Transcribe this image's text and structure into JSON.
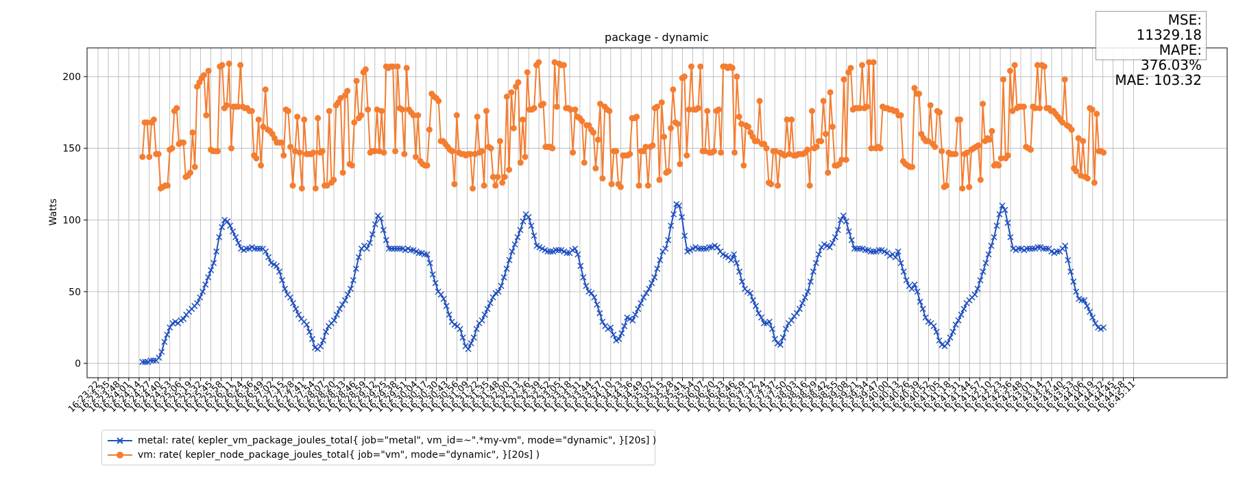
{
  "chart_data": {
    "type": "line",
    "title": "package - dynamic",
    "xlabel": "",
    "ylabel": "Watts",
    "ylim": [
      -10,
      220
    ],
    "yticks": [
      0,
      50,
      100,
      150,
      200
    ],
    "grid": true,
    "legend_placement": "bottom-left",
    "x_tick_labels": [
      "16:23:22",
      "16:23:35",
      "16:23:48",
      "16:24:01",
      "16:24:14",
      "16:24:27",
      "16:24:40",
      "16:24:53",
      "16:25:06",
      "16:25:19",
      "16:25:32",
      "16:25:45",
      "16:25:58",
      "16:26:11",
      "16:26:24",
      "16:26:36",
      "16:26:49",
      "16:27:02",
      "16:27:15",
      "16:27:28",
      "16:27:41",
      "16:27:54",
      "16:28:07",
      "16:28:20",
      "16:28:33",
      "16:28:46",
      "16:28:59",
      "16:29:12",
      "16:29:25",
      "16:29:38",
      "16:29:51",
      "16:30:04",
      "16:30:17",
      "16:30:30",
      "16:30:43",
      "16:30:56",
      "16:31:09",
      "16:31:22",
      "16:31:35",
      "16:31:48",
      "16:32:00",
      "16:32:13",
      "16:32:26",
      "16:32:39",
      "16:32:52",
      "16:33:05",
      "16:33:18",
      "16:33:31",
      "16:33:44",
      "16:33:57",
      "16:34:10",
      "16:34:23",
      "16:34:36",
      "16:34:49",
      "16:35:02",
      "16:35:15",
      "16:35:28",
      "16:35:41",
      "16:35:54",
      "16:36:07",
      "16:36:20",
      "16:36:33",
      "16:36:46",
      "16:36:59",
      "16:37:12",
      "16:37:24",
      "16:37:37",
      "16:37:50",
      "16:38:03",
      "16:38:16",
      "16:38:29",
      "16:38:42",
      "16:38:55",
      "16:39:08",
      "16:39:21",
      "16:39:34",
      "16:39:47",
      "16:40:00",
      "16:40:13",
      "16:40:26",
      "16:40:39",
      "16:40:52",
      "16:41:05",
      "16:41:18",
      "16:41:31",
      "16:41:44",
      "16:41:57",
      "16:42:10",
      "16:42:23",
      "16:42:36",
      "16:42:48",
      "16:43:01",
      "16:43:14",
      "16:43:27",
      "16:43:40",
      "16:43:53",
      "16:44:06",
      "16:44:19",
      "16:44:32",
      "16:44:45",
      "16:44:58",
      "16:45:11"
    ],
    "series": [
      {
        "name": "metal: rate( kepler_vm_package_joules_total{ job=\"metal\", vm_id=~\".*my-vm\", mode=\"dynamic\", }[20s] )",
        "color": "#1f4fbf",
        "marker": "x",
        "values": [
          1,
          1,
          1,
          2,
          2,
          2,
          4,
          8,
          15,
          20,
          25,
          28,
          29,
          28,
          30,
          31,
          34,
          36,
          38,
          40,
          42,
          46,
          50,
          55,
          60,
          65,
          70,
          78,
          88,
          95,
          100,
          99,
          96,
          92,
          88,
          84,
          80,
          79,
          80,
          80,
          81,
          80,
          80,
          80,
          80,
          78,
          74,
          70,
          69,
          68,
          64,
          58,
          52,
          48,
          46,
          42,
          38,
          34,
          31,
          29,
          27,
          22,
          17,
          11,
          10,
          12,
          16,
          22,
          26,
          28,
          30,
          34,
          38,
          41,
          44,
          48,
          52,
          58,
          66,
          74,
          80,
          82,
          80,
          84,
          90,
          97,
          103,
          101,
          93,
          86,
          80,
          80,
          80,
          80,
          80,
          80,
          79,
          80,
          79,
          79,
          78,
          77,
          77,
          76,
          76,
          70,
          62,
          56,
          50,
          48,
          45,
          40,
          34,
          29,
          27,
          26,
          24,
          18,
          12,
          10,
          14,
          18,
          24,
          28,
          30,
          34,
          38,
          42,
          46,
          49,
          50,
          54,
          60,
          66,
          72,
          78,
          83,
          88,
          93,
          99,
          104,
          102,
          96,
          89,
          82,
          81,
          80,
          79,
          78,
          78,
          78,
          79,
          79,
          79,
          78,
          77,
          77,
          79,
          80,
          76,
          68,
          60,
          54,
          50,
          49,
          46,
          41,
          35,
          29,
          26,
          24,
          25,
          20,
          16,
          17,
          21,
          26,
          32,
          31,
          30,
          34,
          38,
          42,
          46,
          49,
          52,
          56,
          60,
          66,
          72,
          78,
          80,
          86,
          96,
          104,
          111,
          110,
          102,
          89,
          78,
          79,
          80,
          81,
          80,
          80,
          80,
          80,
          81,
          81,
          82,
          81,
          78,
          76,
          75,
          74,
          72,
          76,
          70,
          64,
          57,
          52,
          50,
          49,
          44,
          40,
          35,
          32,
          28,
          28,
          29,
          24,
          17,
          14,
          13,
          18,
          24,
          28,
          30,
          33,
          35,
          38,
          42,
          46,
          50,
          57,
          64,
          70,
          76,
          81,
          83,
          82,
          81,
          84,
          88,
          93,
          100,
          103,
          99,
          92,
          86,
          80,
          80,
          80,
          80,
          79,
          79,
          78,
          78,
          78,
          79,
          79,
          78,
          77,
          75,
          76,
          74,
          78,
          70,
          64,
          58,
          54,
          52,
          55,
          50,
          43,
          38,
          32,
          29,
          28,
          26,
          22,
          16,
          13,
          12,
          14,
          18,
          22,
          27,
          30,
          34,
          38,
          42,
          44,
          46,
          48,
          52,
          58,
          64,
          70,
          76,
          82,
          88,
          96,
          104,
          110,
          107,
          98,
          88,
          80,
          79,
          80,
          80,
          79,
          80,
          80,
          80,
          80,
          81,
          81,
          80,
          80,
          80,
          78,
          77,
          78,
          78,
          80,
          82,
          72,
          64,
          57,
          50,
          45,
          44,
          44,
          40,
          36,
          32,
          28,
          25,
          24,
          25
        ]
      },
      {
        "name": "vm: rate( kepler_node_package_joules_total{ job=\"vm\", mode=\"dynamic\", }[20s] )",
        "color": "#f47d30",
        "marker": "o",
        "values": [
          144,
          168,
          168,
          144,
          168,
          170,
          146,
          146,
          122,
          123,
          124,
          124,
          149,
          150,
          176,
          178,
          153,
          154,
          154,
          130,
          131,
          133,
          161,
          137,
          193,
          196,
          199,
          201,
          173,
          204,
          149,
          148,
          148,
          148,
          207,
          208,
          178,
          180,
          209,
          150,
          179,
          179,
          179,
          208,
          179,
          178,
          178,
          176,
          176,
          145,
          143,
          170,
          138,
          165,
          191,
          163,
          162,
          160,
          157,
          154,
          154,
          154,
          145,
          177,
          176,
          151,
          124,
          148,
          172,
          147,
          122,
          170,
          146,
          146,
          146,
          147,
          122,
          171,
          147,
          148,
          124,
          124,
          176,
          126,
          128,
          180,
          182,
          185,
          133,
          187,
          190,
          139,
          138,
          168,
          197,
          171,
          173,
          203,
          205,
          177,
          147,
          148,
          148,
          177,
          148,
          176,
          147,
          207,
          206,
          207,
          207,
          148,
          207,
          178,
          177,
          146,
          206,
          177,
          175,
          173,
          144,
          173,
          141,
          139,
          138,
          138,
          163,
          188,
          186,
          185,
          183,
          155,
          155,
          153,
          151,
          149,
          148,
          125,
          173,
          147,
          146,
          146,
          145,
          146,
          146,
          122,
          146,
          172,
          147,
          148,
          124,
          176,
          151,
          150,
          130,
          124,
          130,
          155,
          126,
          130,
          186,
          135,
          189,
          164,
          193,
          196,
          140,
          170,
          144,
          203,
          177,
          177,
          178,
          208,
          210,
          180,
          181,
          151,
          151,
          151,
          150,
          210,
          179,
          209,
          208,
          208,
          178,
          178,
          177,
          147,
          177,
          172,
          171,
          169,
          140,
          166,
          166,
          163,
          161,
          136,
          156,
          181,
          129,
          179,
          177,
          176,
          125,
          148,
          148,
          125,
          123,
          145,
          145,
          145,
          146,
          171,
          171,
          172,
          124,
          148,
          148,
          151,
          124,
          151,
          152,
          178,
          179,
          128,
          182,
          158,
          133,
          134,
          164,
          191,
          168,
          167,
          139,
          199,
          200,
          145,
          177,
          207,
          177,
          177,
          178,
          207,
          148,
          148,
          176,
          147,
          147,
          148,
          176,
          177,
          147,
          207,
          207,
          206,
          207,
          206,
          147,
          200,
          172,
          167,
          138,
          166,
          165,
          161,
          158,
          155,
          155,
          183,
          153,
          153,
          150,
          126,
          125,
          148,
          148,
          124,
          147,
          146,
          145,
          170,
          146,
          170,
          145,
          145,
          146,
          146,
          146,
          147,
          149,
          124,
          176,
          150,
          151,
          155,
          155,
          183,
          160,
          133,
          189,
          165,
          138,
          138,
          139,
          142,
          198,
          142,
          203,
          206,
          177,
          178,
          178,
          178,
          208,
          178,
          179,
          210,
          150,
          210,
          150,
          151,
          150,
          179,
          178,
          178,
          177,
          177,
          176,
          176,
          173,
          173,
          141,
          139,
          138,
          137,
          137,
          192,
          188,
          188,
          160,
          157,
          155,
          155,
          180,
          153,
          151,
          176,
          175,
          148,
          123,
          124,
          147,
          146,
          146,
          146,
          170,
          170,
          122,
          146,
          147,
          123,
          149,
          150,
          151,
          152,
          128,
          181,
          155,
          157,
          156,
          162,
          138,
          139,
          138,
          143,
          198,
          143,
          145,
          204,
          176,
          208,
          178,
          179,
          179,
          179,
          151,
          150,
          149,
          179,
          178,
          208,
          178,
          208,
          207,
          178,
          178,
          176,
          176,
          174,
          172,
          170,
          168,
          198,
          166,
          165,
          163,
          136,
          134,
          157,
          131,
          155,
          130,
          129,
          178,
          177,
          126,
          174,
          148,
          148,
          147
        ]
      }
    ],
    "annotation": {
      "mse": "MSE: 11329.18",
      "mape": "MAPE: 376.03%",
      "mae": "MAE: 103.32"
    }
  }
}
